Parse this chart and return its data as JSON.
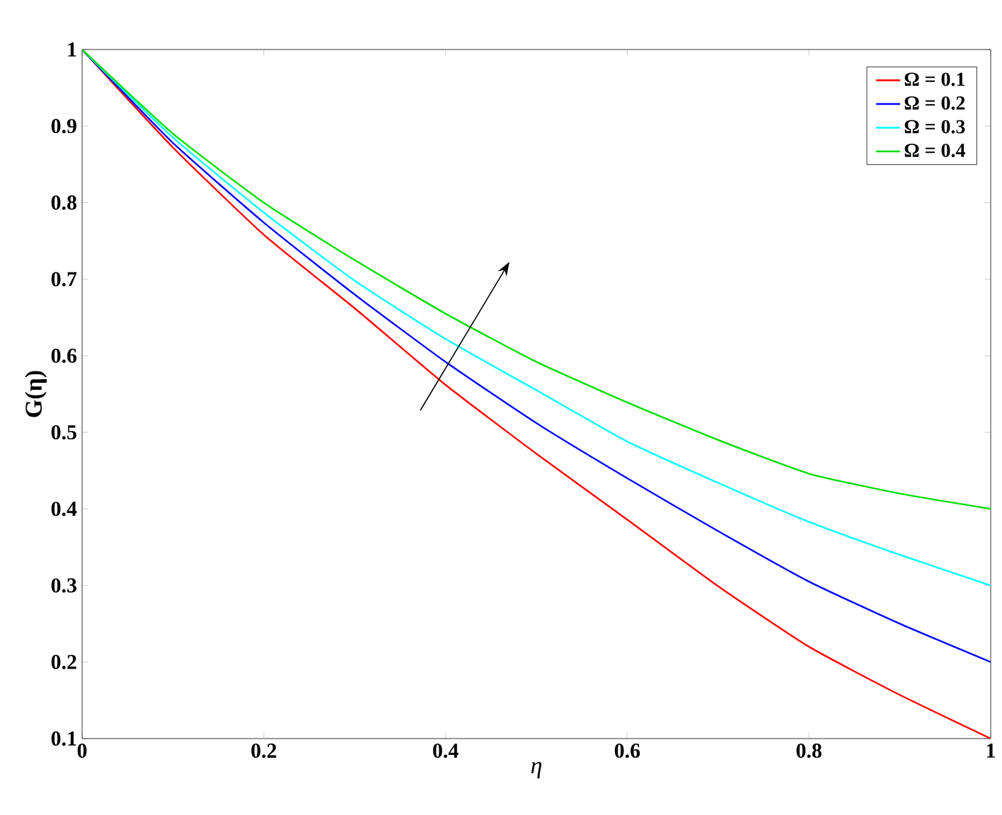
{
  "chart_data": {
    "type": "line",
    "xlabel": "η",
    "ylabel": "G(η)",
    "x": [
      0,
      0.1,
      0.2,
      0.3,
      0.4,
      0.5,
      0.6,
      0.7,
      0.8,
      0.9,
      1
    ],
    "series": [
      {
        "name": "Ω = 0.1",
        "color": "#ff0000",
        "values": [
          1,
          0.872,
          0.758,
          0.662,
          0.562,
          0.472,
          0.386,
          0.299,
          0.22,
          0.157,
          0.1
        ]
      },
      {
        "name": "Ω = 0.2",
        "color": "#0000ff",
        "values": [
          1,
          0.878,
          0.774,
          0.68,
          0.592,
          0.512,
          0.44,
          0.371,
          0.305,
          0.25,
          0.2
        ]
      },
      {
        "name": "Ω = 0.3",
        "color": "#00ffff",
        "values": [
          1,
          0.885,
          0.787,
          0.698,
          0.622,
          0.555,
          0.488,
          0.434,
          0.383,
          0.34,
          0.3
        ]
      },
      {
        "name": "Ω = 0.4",
        "color": "#00dd00",
        "values": [
          1,
          0.89,
          0.8,
          0.725,
          0.655,
          0.592,
          0.539,
          0.49,
          0.446,
          0.42,
          0.4
        ]
      }
    ],
    "xlim": [
      0,
      1
    ],
    "ylim": [
      0.1,
      1
    ],
    "xticks": [
      0,
      0.2,
      0.4,
      0.6,
      0.8,
      1
    ],
    "yticks": [
      0.1,
      0.2,
      0.3,
      0.4,
      0.5,
      0.6,
      0.7,
      0.8,
      0.9,
      1
    ],
    "legend": "top right",
    "grid": false,
    "marker": "none",
    "line_style": "solid"
  }
}
